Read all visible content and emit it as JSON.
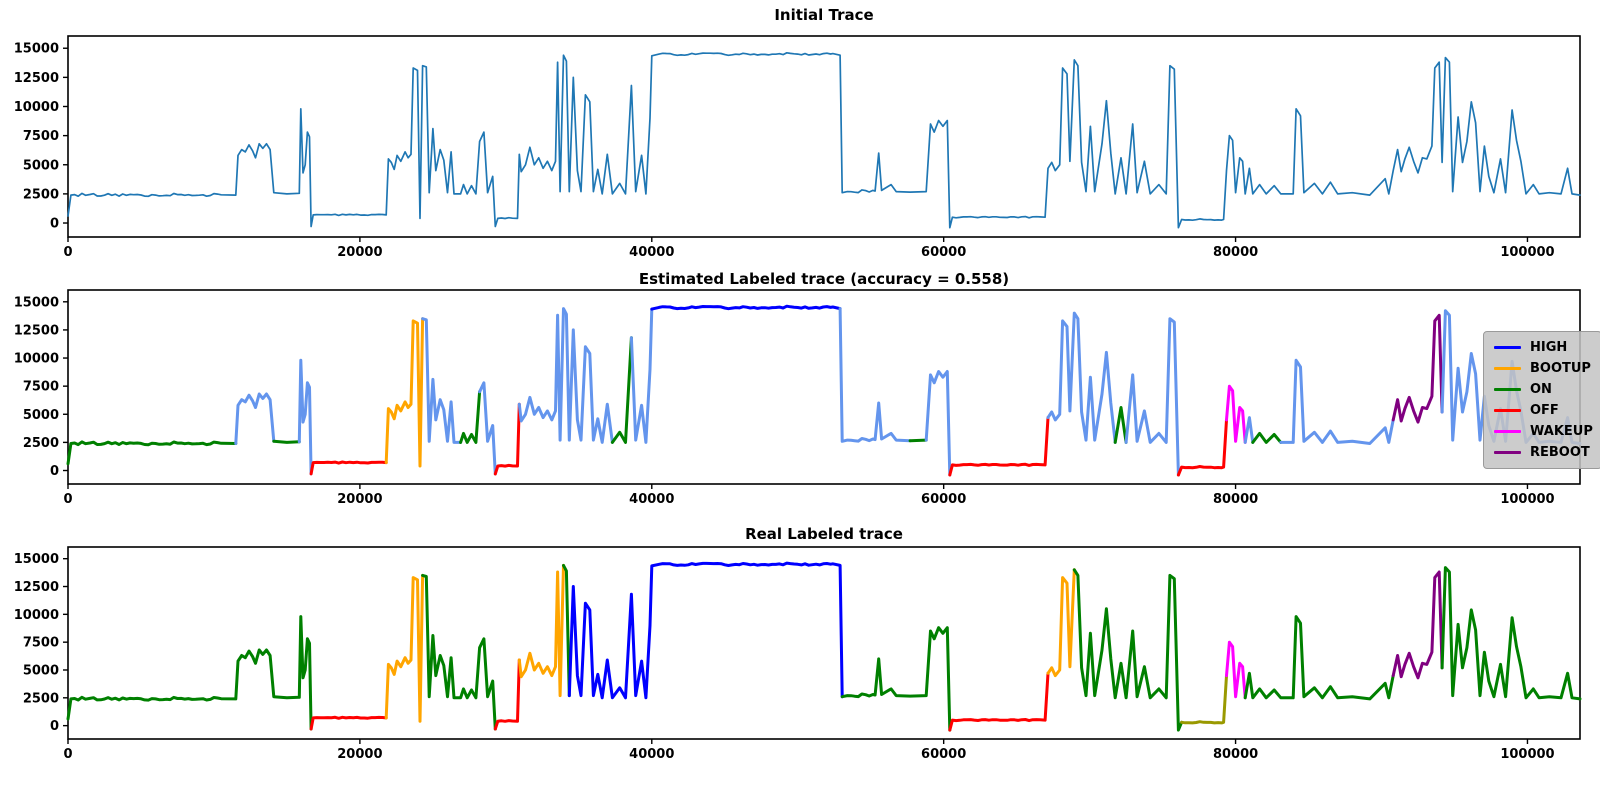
{
  "figure": {
    "background": "#ffffff"
  },
  "label_colors": {
    "TRACE": "#1f77b4",
    "HIGH": "#0000ff",
    "BOOTUP": "#ffa500",
    "ON": "#008000",
    "OFF": "#ff0000",
    "WAKEUP": "#ff00ff",
    "REBOOT": "#800080",
    "UNKNOWN": "#6495ed",
    "OLIVE": "#999900"
  },
  "legend": {
    "position": "right-middle-chart",
    "entries": [
      {
        "label": "HIGH",
        "color": "#0000ff"
      },
      {
        "label": "BOOTUP",
        "color": "#ffa500"
      },
      {
        "label": "ON",
        "color": "#008000"
      },
      {
        "label": "OFF",
        "color": "#ff0000"
      },
      {
        "label": "WAKEUP",
        "color": "#ff00ff"
      },
      {
        "label": "REBOOT",
        "color": "#800080"
      }
    ]
  },
  "waveform": [
    [
      0,
      600
    ],
    [
      200,
      2400
    ],
    [
      1500,
      2450
    ],
    [
      3000,
      2380
    ],
    [
      4500,
      2430
    ],
    [
      6000,
      2400
    ],
    [
      7500,
      2440
    ],
    [
      9000,
      2390
    ],
    [
      10500,
      2420
    ],
    [
      11500,
      2400
    ],
    [
      11650,
      5800
    ],
    [
      11900,
      6300
    ],
    [
      12150,
      6100
    ],
    [
      12400,
      6700
    ],
    [
      12650,
      6200
    ],
    [
      12850,
      5600
    ],
    [
      13100,
      6800
    ],
    [
      13350,
      6400
    ],
    [
      13600,
      6800
    ],
    [
      13850,
      6300
    ],
    [
      14100,
      2600
    ],
    [
      15000,
      2500
    ],
    [
      15850,
      2550
    ],
    [
      15950,
      9800
    ],
    [
      16100,
      4300
    ],
    [
      16250,
      5000
    ],
    [
      16400,
      7800
    ],
    [
      16550,
      7400
    ],
    [
      16660,
      -300
    ],
    [
      16800,
      700
    ],
    [
      21800,
      700
    ],
    [
      21950,
      5500
    ],
    [
      22150,
      5200
    ],
    [
      22350,
      4600
    ],
    [
      22550,
      5800
    ],
    [
      22800,
      5300
    ],
    [
      23100,
      6100
    ],
    [
      23300,
      5600
    ],
    [
      23500,
      5900
    ],
    [
      23650,
      13300
    ],
    [
      23950,
      13100
    ],
    [
      24120,
      400
    ],
    [
      24300,
      13500
    ],
    [
      24550,
      13400
    ],
    [
      24750,
      2600
    ],
    [
      25000,
      8100
    ],
    [
      25200,
      4500
    ],
    [
      25500,
      6300
    ],
    [
      25750,
      5400
    ],
    [
      26000,
      2600
    ],
    [
      26250,
      6100
    ],
    [
      26450,
      2500
    ],
    [
      26900,
      2500
    ],
    [
      27100,
      3300
    ],
    [
      27350,
      2500
    ],
    [
      27650,
      3200
    ],
    [
      27950,
      2500
    ],
    [
      28200,
      7000
    ],
    [
      28500,
      7800
    ],
    [
      28750,
      2600
    ],
    [
      29100,
      4000
    ],
    [
      29280,
      -300
    ],
    [
      29450,
      400
    ],
    [
      30800,
      400
    ],
    [
      30920,
      5900
    ],
    [
      31050,
      4400
    ],
    [
      31350,
      5000
    ],
    [
      31650,
      6500
    ],
    [
      31950,
      5000
    ],
    [
      32250,
      5600
    ],
    [
      32550,
      4700
    ],
    [
      32850,
      5300
    ],
    [
      33150,
      4500
    ],
    [
      33400,
      5300
    ],
    [
      33550,
      13800
    ],
    [
      33720,
      2700
    ],
    [
      33950,
      14400
    ],
    [
      34150,
      13900
    ],
    [
      34350,
      2700
    ],
    [
      34620,
      12500
    ],
    [
      34900,
      4500
    ],
    [
      35150,
      2700
    ],
    [
      35450,
      11000
    ],
    [
      35750,
      10400
    ],
    [
      36000,
      2700
    ],
    [
      36300,
      4600
    ],
    [
      36600,
      2500
    ],
    [
      36950,
      5900
    ],
    [
      37300,
      2500
    ],
    [
      37800,
      3400
    ],
    [
      38200,
      2500
    ],
    [
      38600,
      11800
    ],
    [
      38900,
      2700
    ],
    [
      39300,
      5800
    ],
    [
      39600,
      2500
    ],
    [
      39880,
      9000
    ],
    [
      40000,
      14350
    ],
    [
      40500,
      14500
    ],
    [
      42000,
      14430
    ],
    [
      43500,
      14580
    ],
    [
      45000,
      14450
    ],
    [
      46500,
      14520
    ],
    [
      48000,
      14430
    ],
    [
      49500,
      14560
    ],
    [
      51000,
      14460
    ],
    [
      52400,
      14540
    ],
    [
      52900,
      14400
    ],
    [
      53050,
      2600
    ],
    [
      53400,
      2700
    ],
    [
      55300,
      2750
    ],
    [
      55550,
      6000
    ],
    [
      55750,
      2800
    ],
    [
      56400,
      3300
    ],
    [
      56750,
      2700
    ],
    [
      57700,
      2650
    ],
    [
      58800,
      2700
    ],
    [
      59100,
      8500
    ],
    [
      59350,
      7800
    ],
    [
      59650,
      8800
    ],
    [
      59950,
      8300
    ],
    [
      60250,
      8800
    ],
    [
      60420,
      -400
    ],
    [
      60600,
      500
    ],
    [
      66950,
      500
    ],
    [
      67150,
      4700
    ],
    [
      67400,
      5200
    ],
    [
      67650,
      4500
    ],
    [
      67950,
      5000
    ],
    [
      68150,
      13300
    ],
    [
      68450,
      12800
    ],
    [
      68650,
      5300
    ],
    [
      68950,
      14000
    ],
    [
      69200,
      13500
    ],
    [
      69450,
      5200
    ],
    [
      69750,
      2700
    ],
    [
      70050,
      8300
    ],
    [
      70350,
      2700
    ],
    [
      70850,
      6800
    ],
    [
      71150,
      10500
    ],
    [
      71450,
      6000
    ],
    [
      71750,
      2500
    ],
    [
      72150,
      5600
    ],
    [
      72500,
      2500
    ],
    [
      72950,
      8500
    ],
    [
      73250,
      2600
    ],
    [
      73750,
      5300
    ],
    [
      74150,
      2500
    ],
    [
      74750,
      3300
    ],
    [
      75250,
      2500
    ],
    [
      75500,
      13500
    ],
    [
      75800,
      13200
    ],
    [
      76080,
      -400
    ],
    [
      76300,
      300
    ],
    [
      79180,
      300
    ],
    [
      79380,
      4500
    ],
    [
      79580,
      7500
    ],
    [
      79800,
      7100
    ],
    [
      80000,
      2600
    ],
    [
      80280,
      5600
    ],
    [
      80480,
      5300
    ],
    [
      80660,
      2500
    ],
    [
      80950,
      4700
    ],
    [
      81180,
      2500
    ],
    [
      81650,
      3300
    ],
    [
      82100,
      2500
    ],
    [
      82650,
      3200
    ],
    [
      83100,
      2500
    ],
    [
      83950,
      2500
    ],
    [
      84150,
      9800
    ],
    [
      84450,
      9200
    ],
    [
      84680,
      2600
    ],
    [
      85400,
      3400
    ],
    [
      85950,
      2500
    ],
    [
      86500,
      3500
    ],
    [
      87000,
      2500
    ],
    [
      88000,
      2600
    ],
    [
      89200,
      2400
    ],
    [
      90250,
      3800
    ],
    [
      90500,
      2500
    ],
    [
      90800,
      4500
    ],
    [
      91100,
      6300
    ],
    [
      91350,
      4400
    ],
    [
      91600,
      5500
    ],
    [
      91900,
      6500
    ],
    [
      92200,
      5300
    ],
    [
      92500,
      4300
    ],
    [
      92800,
      5600
    ],
    [
      93100,
      5500
    ],
    [
      93450,
      6600
    ],
    [
      93650,
      13300
    ],
    [
      93950,
      13800
    ],
    [
      94150,
      5200
    ],
    [
      94380,
      14200
    ],
    [
      94650,
      13800
    ],
    [
      94880,
      2700
    ],
    [
      95250,
      9100
    ],
    [
      95550,
      5200
    ],
    [
      95850,
      7000
    ],
    [
      96150,
      10400
    ],
    [
      96450,
      8600
    ],
    [
      96750,
      2700
    ],
    [
      97050,
      6600
    ],
    [
      97350,
      4000
    ],
    [
      97700,
      2600
    ],
    [
      98150,
      5500
    ],
    [
      98500,
      2600
    ],
    [
      98950,
      9700
    ],
    [
      99250,
      7100
    ],
    [
      99550,
      5300
    ],
    [
      99900,
      2500
    ],
    [
      100400,
      3300
    ],
    [
      100800,
      2500
    ],
    [
      101500,
      2600
    ],
    [
      102300,
      2500
    ],
    [
      102750,
      4700
    ],
    [
      103050,
      2500
    ],
    [
      103600,
      2400
    ]
  ],
  "chart_data": [
    {
      "type": "line",
      "title": "Initial Trace",
      "xlabel": "",
      "ylabel": "",
      "xlim": [
        0,
        103600
      ],
      "ylim": [
        -1200,
        16050
      ],
      "xticks": [
        0,
        20000,
        40000,
        60000,
        80000,
        100000
      ],
      "yticks": [
        0,
        2500,
        5000,
        7500,
        10000,
        12500,
        15000
      ],
      "grid": false,
      "uses": "waveform",
      "line_width": 1.7,
      "segments": [
        [
          0,
          103600,
          "TRACE"
        ]
      ]
    },
    {
      "type": "line",
      "title": "Estimated Labeled trace (accuracy = 0.558)",
      "xlabel": "",
      "ylabel": "",
      "xlim": [
        0,
        103600
      ],
      "ylim": [
        -1200,
        16050
      ],
      "xticks": [
        0,
        20000,
        40000,
        60000,
        80000,
        100000
      ],
      "yticks": [
        0,
        2500,
        5000,
        7500,
        10000,
        12500,
        15000
      ],
      "grid": false,
      "uses": "waveform",
      "line_width": 3,
      "legend": true,
      "segments": [
        [
          0,
          11500,
          "ON"
        ],
        [
          11500,
          14200,
          "UNKNOWN"
        ],
        [
          14200,
          15900,
          "ON"
        ],
        [
          15900,
          16640,
          "UNKNOWN"
        ],
        [
          16640,
          21850,
          "OFF"
        ],
        [
          21850,
          24220,
          "BOOTUP"
        ],
        [
          24220,
          26900,
          "UNKNOWN"
        ],
        [
          26900,
          28120,
          "ON"
        ],
        [
          28120,
          29320,
          "UNKNOWN"
        ],
        [
          29320,
          30950,
          "OFF"
        ],
        [
          30950,
          37350,
          "UNKNOWN"
        ],
        [
          37350,
          38450,
          "ON"
        ],
        [
          38450,
          39950,
          "UNKNOWN"
        ],
        [
          39950,
          52970,
          "HIGH"
        ],
        [
          52970,
          57700,
          "UNKNOWN"
        ],
        [
          57700,
          58900,
          "ON"
        ],
        [
          58900,
          60430,
          "UNKNOWN"
        ],
        [
          60430,
          67130,
          "OFF"
        ],
        [
          67130,
          71750,
          "UNKNOWN"
        ],
        [
          71750,
          72700,
          "ON"
        ],
        [
          72700,
          76170,
          "UNKNOWN"
        ],
        [
          76170,
          79330,
          "OFF"
        ],
        [
          79330,
          80660,
          "WAKEUP"
        ],
        [
          80660,
          81150,
          "UNKNOWN"
        ],
        [
          81150,
          82900,
          "ON"
        ],
        [
          82900,
          90760,
          "UNKNOWN"
        ],
        [
          90760,
          94150,
          "REBOOT"
        ],
        [
          94150,
          103600,
          "UNKNOWN"
        ]
      ]
    },
    {
      "type": "line",
      "title": "Real Labeled trace",
      "xlabel": "",
      "ylabel": "",
      "xlim": [
        0,
        103600
      ],
      "ylim": [
        -1200,
        16050
      ],
      "xticks": [
        0,
        20000,
        40000,
        60000,
        80000,
        100000
      ],
      "yticks": [
        0,
        2500,
        5000,
        7500,
        10000,
        12500,
        15000
      ],
      "grid": false,
      "uses": "waveform",
      "line_width": 3,
      "segments": [
        [
          0,
          16640,
          "ON"
        ],
        [
          16640,
          21850,
          "OFF"
        ],
        [
          21850,
          24220,
          "BOOTUP"
        ],
        [
          24220,
          29320,
          "ON"
        ],
        [
          29320,
          30950,
          "OFF"
        ],
        [
          30950,
          33870,
          "BOOTUP"
        ],
        [
          33870,
          34480,
          "ON"
        ],
        [
          34480,
          53060,
          "HIGH"
        ],
        [
          53060,
          60430,
          "ON"
        ],
        [
          60430,
          67130,
          "OFF"
        ],
        [
          67130,
          68830,
          "BOOTUP"
        ],
        [
          68830,
          76250,
          "ON"
        ],
        [
          76250,
          79290,
          "OLIVE"
        ],
        [
          79290,
          80660,
          "WAKEUP"
        ],
        [
          80660,
          90760,
          "ON"
        ],
        [
          90760,
          94260,
          "REBOOT"
        ],
        [
          94260,
          103600,
          "ON"
        ]
      ]
    }
  ]
}
